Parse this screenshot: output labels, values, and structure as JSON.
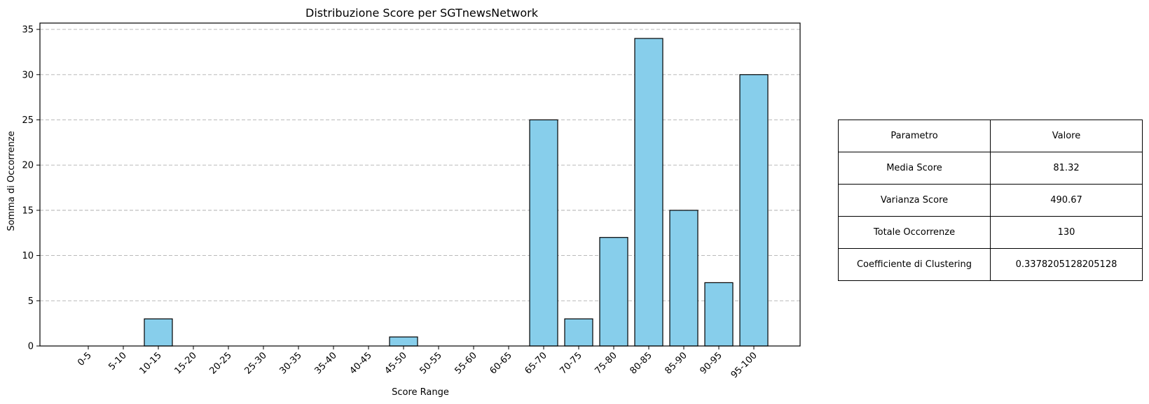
{
  "chart_data": {
    "type": "bar",
    "title": "Distribuzione Score per SGTnewsNetwork",
    "xlabel": "Score Range",
    "ylabel": "Somma di Occorrenze",
    "categories": [
      "0-5",
      "5-10",
      "10-15",
      "15-20",
      "20-25",
      "25-30",
      "30-35",
      "35-40",
      "40-45",
      "45-50",
      "50-55",
      "55-60",
      "60-65",
      "65-70",
      "70-75",
      "75-80",
      "80-85",
      "85-90",
      "90-95",
      "95-100"
    ],
    "values": [
      0,
      0,
      3,
      0,
      0,
      0,
      0,
      0,
      0,
      1,
      0,
      0,
      0,
      25,
      3,
      12,
      34,
      15,
      7,
      30
    ],
    "ylim": [
      0,
      35.7
    ],
    "yticks": [
      0,
      5,
      10,
      15,
      20,
      25,
      30,
      35
    ],
    "grid": "y-dashed",
    "bar_color": "#87CEEB",
    "edge_color": "#000000",
    "grid_color": "#b0b0b0"
  },
  "table": {
    "headers": [
      "Parametro",
      "Valore"
    ],
    "rows": [
      [
        "Media Score",
        "81.32"
      ],
      [
        "Varianza Score",
        "490.67"
      ],
      [
        "Totale Occorrenze",
        "130"
      ],
      [
        "Coefficiente di Clustering",
        "0.3378205128205128"
      ]
    ]
  }
}
